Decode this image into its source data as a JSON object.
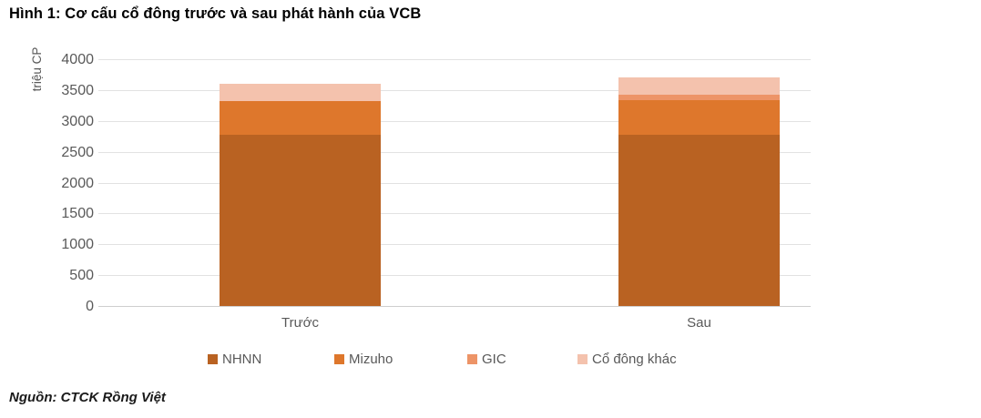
{
  "title": "Hình 1: Cơ cấu cổ đông trước và sau phát hành của VCB",
  "source": "Nguồn: CTCK Rồng Việt",
  "chart_data": {
    "type": "bar",
    "stacked": true,
    "title": "Hình 1: Cơ cấu cổ đông trước và sau phát hành của VCB",
    "xlabel": "",
    "ylabel": "triệu CP",
    "categories": [
      "Trước",
      "Sau"
    ],
    "series": [
      {
        "name": "NHNN",
        "color": "#B96222",
        "values": [
          2774,
          2774
        ]
      },
      {
        "name": "Mizuho",
        "color": "#DE772C",
        "values": [
          540,
          556
        ]
      },
      {
        "name": "GIC",
        "color": "#ED9467",
        "values": [
          0,
          94
        ]
      },
      {
        "name": "Cổ đông khác",
        "color": "#F4C2AD",
        "values": [
          284,
          284
        ]
      }
    ],
    "ylim": [
      0,
      4000
    ],
    "ytick_step": 500,
    "grid": true,
    "legend_position": "bottom"
  }
}
